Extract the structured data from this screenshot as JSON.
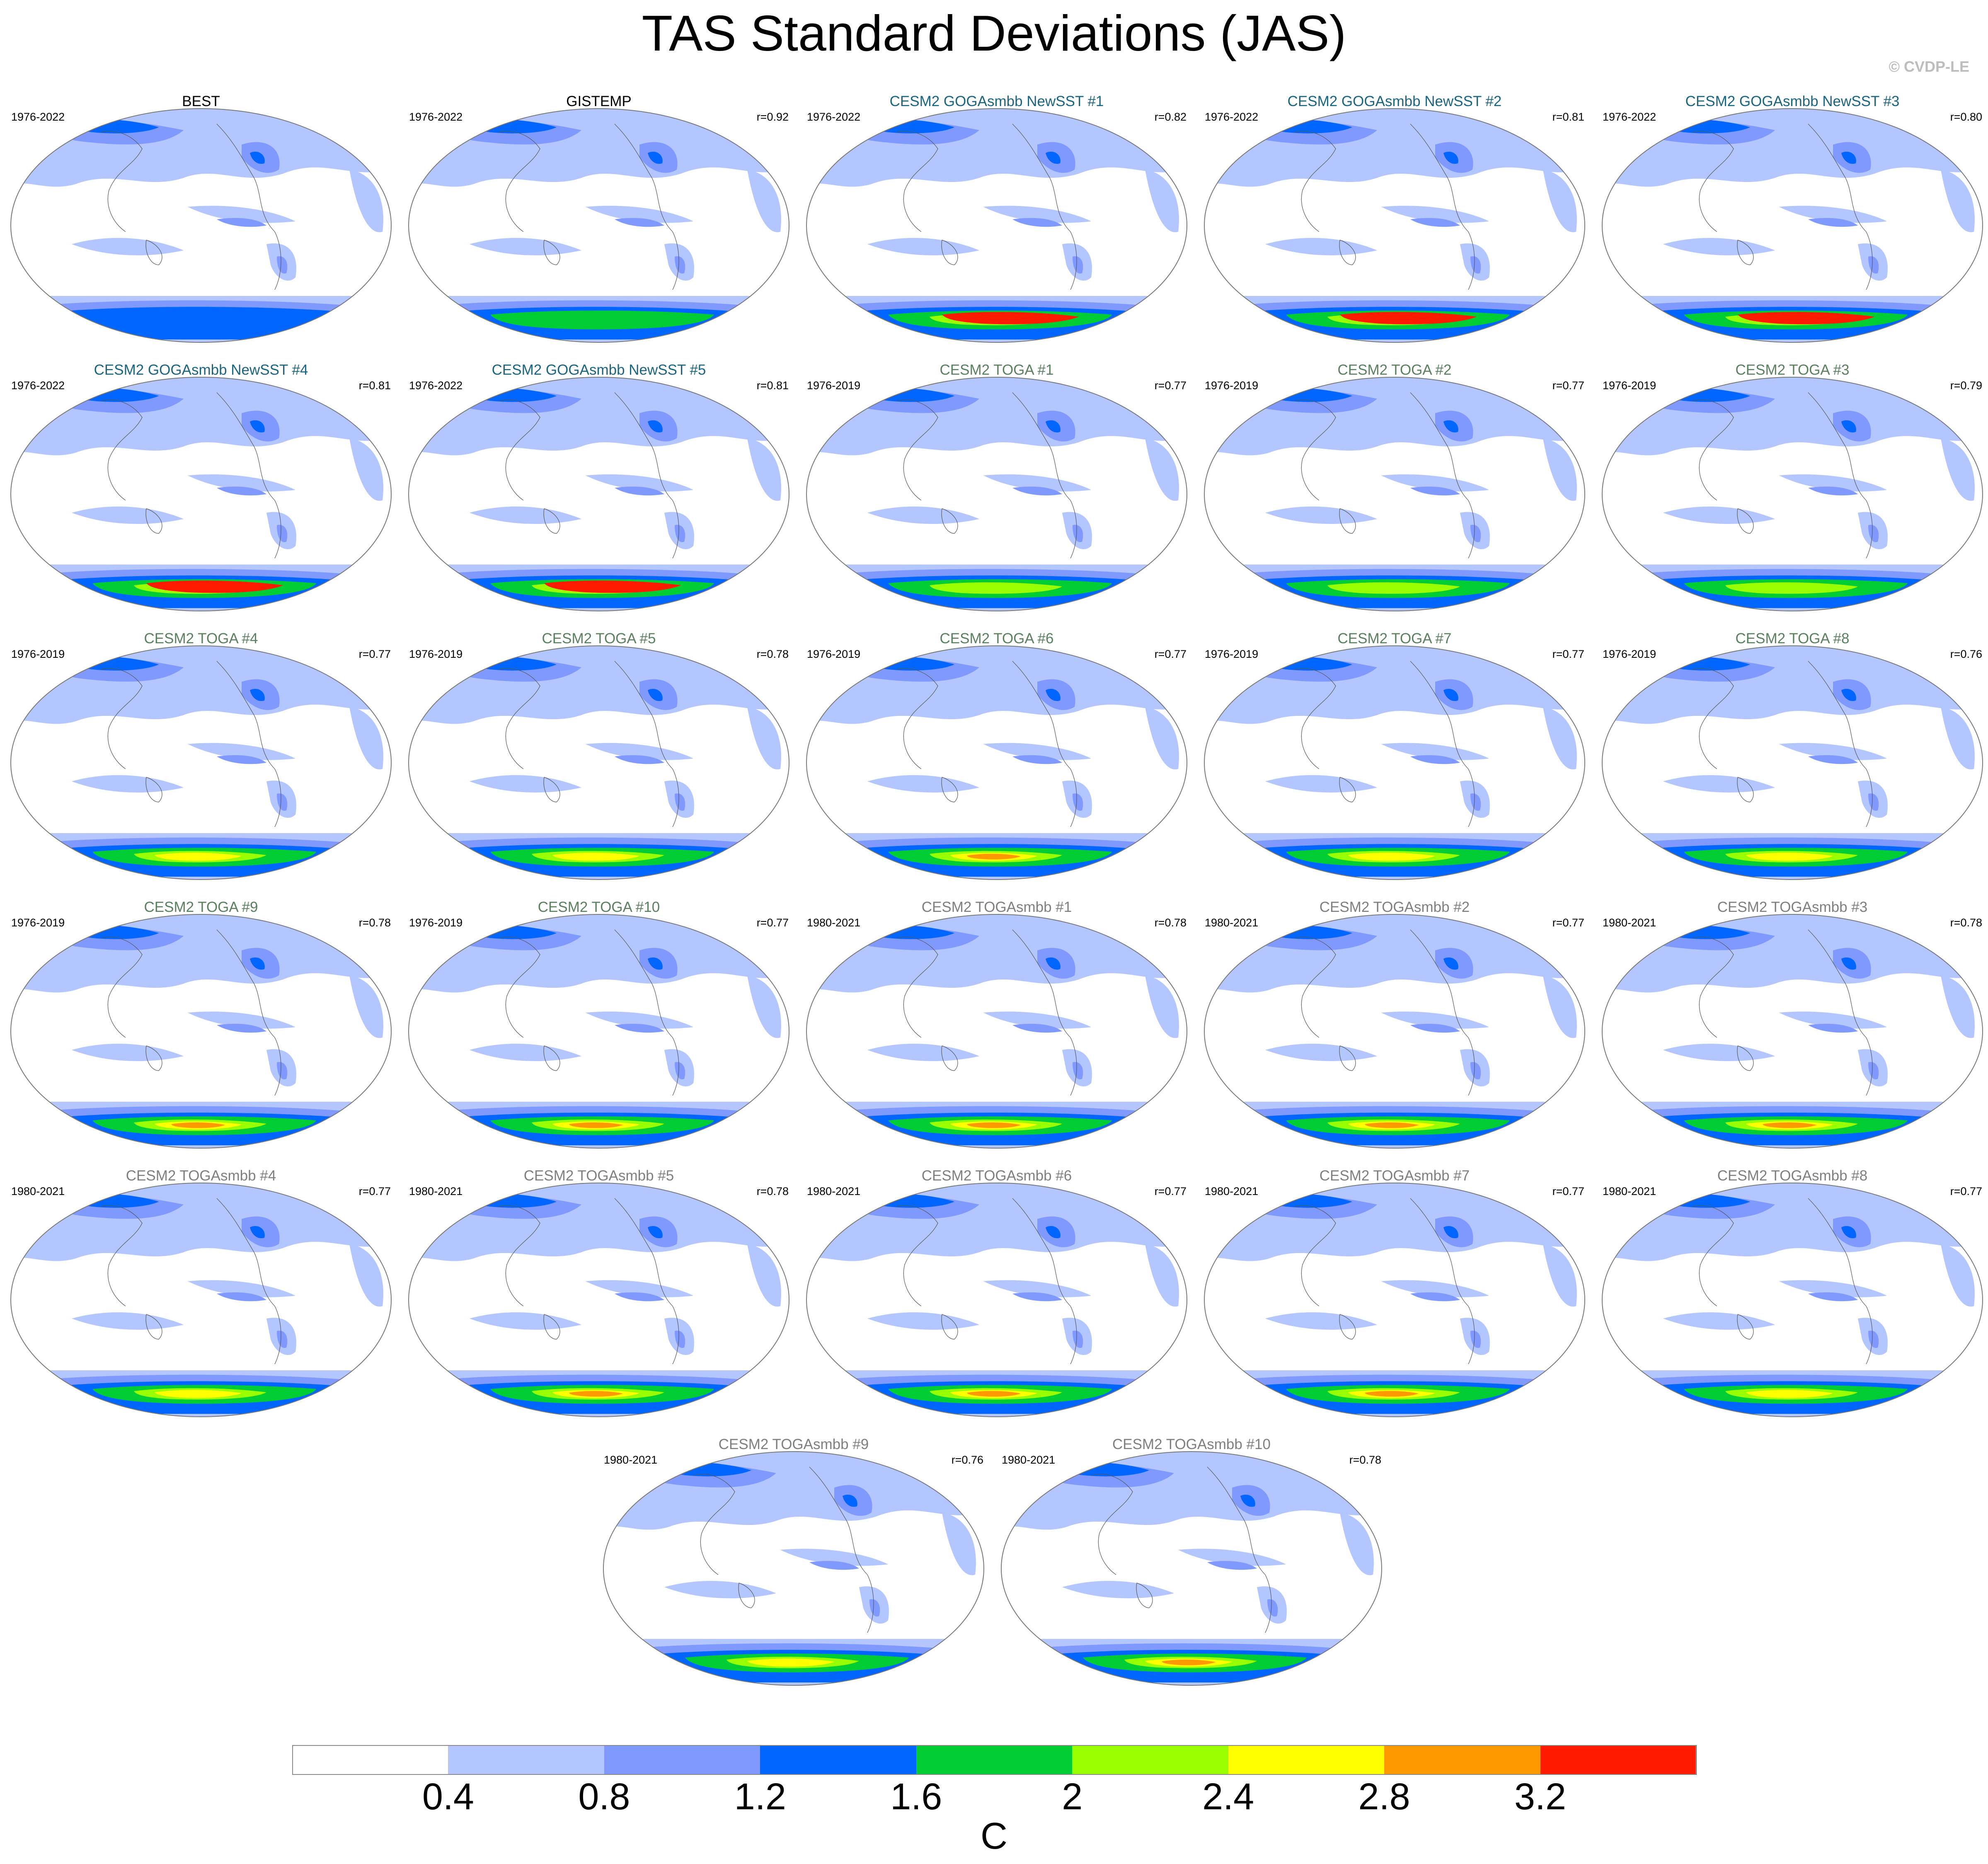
{
  "title": "TAS Standard Deviations (JAS)",
  "credit": "© CVDP-LE",
  "colors": {
    "levels": [
      "#ffffff",
      "#b3c6ff",
      "#8099ff",
      "#0066ff",
      "#00cc33",
      "#99ff00",
      "#ffff00",
      "#ff9900",
      "#ff1a00"
    ],
    "land_outline": "#555555",
    "obs_title": "#000000",
    "goga_title": "#1a6680",
    "toga_title": "#5a8060",
    "togasmbb_title": "#7f7f7f"
  },
  "panels": [
    {
      "title": "BEST",
      "period": "1976-2022",
      "corr": "",
      "group": "obs",
      "polar_max": 3
    },
    {
      "title": "GISTEMP",
      "period": "1976-2022",
      "corr": "r=0.92",
      "group": "obs",
      "polar_max": 4
    },
    {
      "title": "CESM2 GOGAsmbb NewSST #1",
      "period": "1976-2022",
      "corr": "r=0.82",
      "group": "goga",
      "polar_max": 8
    },
    {
      "title": "CESM2 GOGAsmbb NewSST #2",
      "period": "1976-2022",
      "corr": "r=0.81",
      "group": "goga",
      "polar_max": 8
    },
    {
      "title": "CESM2 GOGAsmbb NewSST #3",
      "period": "1976-2022",
      "corr": "r=0.80",
      "group": "goga",
      "polar_max": 8
    },
    {
      "title": "CESM2 GOGAsmbb NewSST #4",
      "period": "1976-2022",
      "corr": "r=0.81",
      "group": "goga",
      "polar_max": 8
    },
    {
      "title": "CESM2 GOGAsmbb NewSST #5",
      "period": "1976-2022",
      "corr": "r=0.81",
      "group": "goga",
      "polar_max": 8
    },
    {
      "title": "CESM2 TOGA #1",
      "period": "1976-2019",
      "corr": "r=0.77",
      "group": "toga",
      "polar_max": 5
    },
    {
      "title": "CESM2 TOGA #2",
      "period": "1976-2019",
      "corr": "r=0.77",
      "group": "toga",
      "polar_max": 5
    },
    {
      "title": "CESM2 TOGA #3",
      "period": "1976-2019",
      "corr": "r=0.79",
      "group": "toga",
      "polar_max": 5
    },
    {
      "title": "CESM2 TOGA #4",
      "period": "1976-2019",
      "corr": "r=0.77",
      "group": "toga",
      "polar_max": 6
    },
    {
      "title": "CESM2 TOGA #5",
      "period": "1976-2019",
      "corr": "r=0.78",
      "group": "toga",
      "polar_max": 6
    },
    {
      "title": "CESM2 TOGA #6",
      "period": "1976-2019",
      "corr": "r=0.77",
      "group": "toga",
      "polar_max": 7
    },
    {
      "title": "CESM2 TOGA #7",
      "period": "1976-2019",
      "corr": "r=0.77",
      "group": "toga",
      "polar_max": 6
    },
    {
      "title": "CESM2 TOGA #8",
      "period": "1976-2019",
      "corr": "r=0.76",
      "group": "toga",
      "polar_max": 6
    },
    {
      "title": "CESM2 TOGA #9",
      "period": "1976-2019",
      "corr": "r=0.78",
      "group": "toga",
      "polar_max": 7
    },
    {
      "title": "CESM2 TOGA #10",
      "period": "1976-2019",
      "corr": "r=0.77",
      "group": "toga",
      "polar_max": 7
    },
    {
      "title": "CESM2 TOGAsmbb #1",
      "period": "1980-2021",
      "corr": "r=0.78",
      "group": "togasmbb",
      "polar_max": 7
    },
    {
      "title": "CESM2 TOGAsmbb #2",
      "period": "1980-2021",
      "corr": "r=0.77",
      "group": "togasmbb",
      "polar_max": 7
    },
    {
      "title": "CESM2 TOGAsmbb #3",
      "period": "1980-2021",
      "corr": "r=0.78",
      "group": "togasmbb",
      "polar_max": 7
    },
    {
      "title": "CESM2 TOGAsmbb #4",
      "period": "1980-2021",
      "corr": "r=0.77",
      "group": "togasmbb",
      "polar_max": 6
    },
    {
      "title": "CESM2 TOGAsmbb #5",
      "period": "1980-2021",
      "corr": "r=0.78",
      "group": "togasmbb",
      "polar_max": 7
    },
    {
      "title": "CESM2 TOGAsmbb #6",
      "period": "1980-2021",
      "corr": "r=0.77",
      "group": "togasmbb",
      "polar_max": 7
    },
    {
      "title": "CESM2 TOGAsmbb #7",
      "period": "1980-2021",
      "corr": "r=0.77",
      "group": "togasmbb",
      "polar_max": 7
    },
    {
      "title": "CESM2 TOGAsmbb #8",
      "period": "1980-2021",
      "corr": "r=0.77",
      "group": "togasmbb",
      "polar_max": 6
    },
    {
      "title": "CESM2 TOGAsmbb #9",
      "period": "1980-2021",
      "corr": "r=0.76",
      "group": "togasmbb",
      "polar_max": 6
    },
    {
      "title": "CESM2 TOGAsmbb #10",
      "period": "1980-2021",
      "corr": "r=0.78",
      "group": "togasmbb",
      "polar_max": 7
    }
  ],
  "colorbar": {
    "ticks": [
      "0.4",
      "0.8",
      "1.2",
      "1.6",
      "2",
      "2.4",
      "2.8",
      "3.2"
    ],
    "unit": "C"
  }
}
